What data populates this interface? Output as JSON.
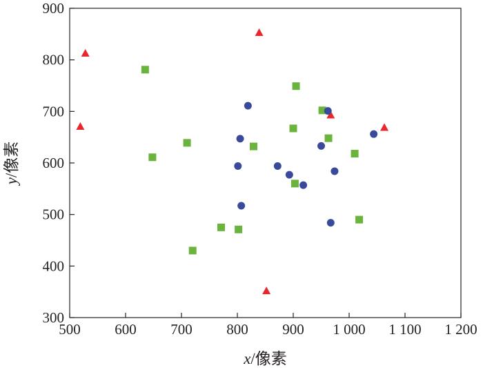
{
  "chart_data": {
    "type": "scatter",
    "title": "",
    "xlabel": {
      "var": "x",
      "unit": "/像素"
    },
    "ylabel": {
      "var": "y",
      "unit": "/像素"
    },
    "xlim": [
      500,
      1200
    ],
    "ylim": [
      300,
      900
    ],
    "x_ticks": [
      {
        "value": 500,
        "label": "500"
      },
      {
        "value": 600,
        "label": "600"
      },
      {
        "value": 700,
        "label": "700"
      },
      {
        "value": 800,
        "label": "800"
      },
      {
        "value": 900,
        "label": "900"
      },
      {
        "value": 1000,
        "label": "1 000"
      },
      {
        "value": 1100,
        "label": "1 100"
      },
      {
        "value": 1200,
        "label": "1 200"
      }
    ],
    "y_ticks": [
      {
        "value": 300,
        "label": "300"
      },
      {
        "value": 400,
        "label": "400"
      },
      {
        "value": 500,
        "label": "500"
      },
      {
        "value": 600,
        "label": "600"
      },
      {
        "value": 700,
        "label": "700"
      },
      {
        "value": 800,
        "label": "800"
      },
      {
        "value": 900,
        "label": "900"
      }
    ],
    "grid": false,
    "legend": "none",
    "series": [
      {
        "marker": "triangle",
        "color": "#e8262b",
        "points": [
          {
            "x": 528,
            "y": 813
          },
          {
            "x": 519,
            "y": 671
          },
          {
            "x": 839,
            "y": 853
          },
          {
            "x": 967,
            "y": 693
          },
          {
            "x": 1063,
            "y": 669
          },
          {
            "x": 852,
            "y": 352
          }
        ]
      },
      {
        "marker": "square",
        "color": "#6ab43e",
        "points": [
          {
            "x": 635,
            "y": 781
          },
          {
            "x": 905,
            "y": 749
          },
          {
            "x": 952,
            "y": 702
          },
          {
            "x": 900,
            "y": 667
          },
          {
            "x": 963,
            "y": 648
          },
          {
            "x": 710,
            "y": 639
          },
          {
            "x": 829,
            "y": 632
          },
          {
            "x": 648,
            "y": 611
          },
          {
            "x": 1010,
            "y": 618
          },
          {
            "x": 903,
            "y": 560
          },
          {
            "x": 1018,
            "y": 490
          },
          {
            "x": 771,
            "y": 475
          },
          {
            "x": 802,
            "y": 471
          },
          {
            "x": 720,
            "y": 430
          }
        ]
      },
      {
        "marker": "circle",
        "color": "#3a4a9a",
        "points": [
          {
            "x": 819,
            "y": 711
          },
          {
            "x": 962,
            "y": 701
          },
          {
            "x": 805,
            "y": 647
          },
          {
            "x": 1044,
            "y": 656
          },
          {
            "x": 950,
            "y": 633
          },
          {
            "x": 801,
            "y": 594
          },
          {
            "x": 872,
            "y": 594
          },
          {
            "x": 893,
            "y": 577
          },
          {
            "x": 974,
            "y": 584
          },
          {
            "x": 918,
            "y": 557
          },
          {
            "x": 807,
            "y": 517
          },
          {
            "x": 967,
            "y": 484
          }
        ]
      }
    ]
  }
}
